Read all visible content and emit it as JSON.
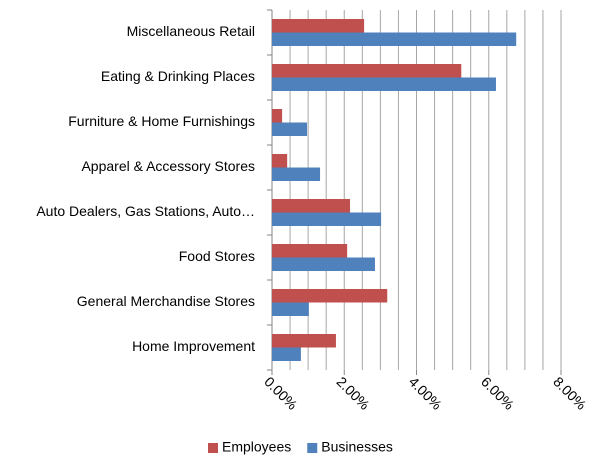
{
  "chart_data": {
    "type": "hbar",
    "categories": [
      "Miscellaneous Retail",
      "Eating & Drinking Places",
      "Furniture & Home Furnishings",
      "Apparel & Accessory Stores",
      "Auto Dealers, Gas Stations, Auto…",
      "Food Stores",
      "General Merchandise Stores",
      "Home Improvement"
    ],
    "series": [
      {
        "name": "Employees",
        "color": "#c0504d",
        "values": [
          2.55,
          5.24,
          0.28,
          0.42,
          2.16,
          2.08,
          3.19,
          1.77
        ]
      },
      {
        "name": "Businesses",
        "color": "#4f81bd",
        "values": [
          6.76,
          6.2,
          0.97,
          1.33,
          3.02,
          2.85,
          1.02,
          0.8
        ]
      }
    ],
    "xlim": [
      0,
      8
    ],
    "xticks": [
      {
        "value": 0,
        "label": "0.00%"
      },
      {
        "value": 2,
        "label": "2.00%"
      },
      {
        "value": 4,
        "label": "4.00%"
      },
      {
        "value": 6,
        "label": "6.00%"
      },
      {
        "value": 8,
        "label": "8.00%"
      }
    ],
    "xminorticks": [
      0.5,
      1,
      1.5,
      2.5,
      3,
      3.5,
      4.5,
      5,
      5.5,
      6.5,
      7,
      7.5
    ],
    "grid": true,
    "legend": "bottom"
  }
}
